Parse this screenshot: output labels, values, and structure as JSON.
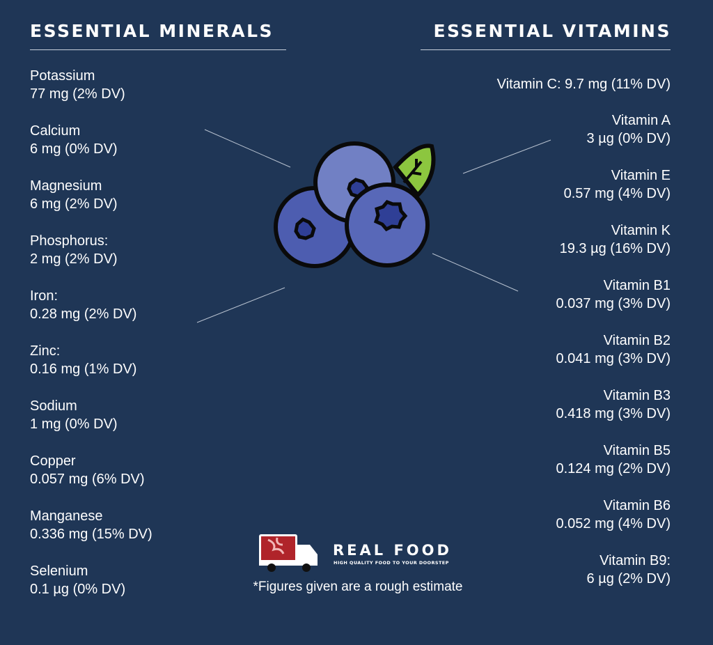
{
  "minerals": {
    "title": "ESSENTIAL MINERALS",
    "items": [
      {
        "name": "Potassium",
        "value": "77 mg (2% DV)"
      },
      {
        "name": "Calcium",
        "value": "6 mg (0% DV)"
      },
      {
        "name": "Magnesium",
        "value": "6 mg (2% DV)"
      },
      {
        "name": "Phosphorus:",
        "value": "2 mg (2% DV)"
      },
      {
        "name": "Iron:",
        "value": "0.28 mg (2% DV)"
      },
      {
        "name": "Zinc:",
        "value": "0.16 mg (1% DV)"
      },
      {
        "name": "Sodium",
        "value": "1 mg (0% DV)"
      },
      {
        "name": "Copper",
        "value": "0.057 mg (6% DV)"
      },
      {
        "name": "Manganese",
        "value": "0.336 mg (15% DV)"
      },
      {
        "name": "Selenium",
        "value": "0.1 µg (0% DV)"
      }
    ]
  },
  "vitamins": {
    "title": "ESSENTIAL VITAMINS",
    "vitamin_c": "Vitamin C: 9.7 mg (11%  DV)",
    "items": [
      {
        "name": "Vitamin A",
        "value": "3 µg (0% DV)"
      },
      {
        "name": "Vitamin E",
        "value": "0.57 mg (4% DV)"
      },
      {
        "name": "Vitamin K",
        "value": "19.3 µg (16% DV)"
      },
      {
        "name": "Vitamin B1",
        "value": "0.037 mg (3% DV)"
      },
      {
        "name": "Vitamin B2",
        "value": "0.041 mg (3% DV)"
      },
      {
        "name": "Vitamin B3",
        "value": "0.418 mg (3% DV)"
      },
      {
        "name": "Vitamin B5",
        "value": "0.124 mg (2% DV)"
      },
      {
        "name": "Vitamin B6",
        "value": "0.052 mg (4% DV)"
      },
      {
        "name": "Vitamin B9:",
        "value": "6 µg (2% DV)"
      }
    ]
  },
  "logo": {
    "name": "REAL FOOD",
    "tagline": "HIGH QUALITY FOOD TO YOUR DOORSTEP"
  },
  "footnote": "*Figures given are a rough estimate",
  "colors": {
    "background": "#1f3656",
    "berry": "#5566b8",
    "berry_light": "#7280c4",
    "leaf": "#8cc63f",
    "meat": "#b0242a"
  }
}
